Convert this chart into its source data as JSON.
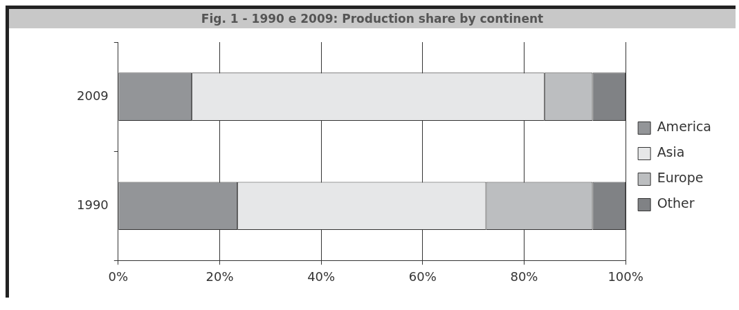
{
  "chart_data": {
    "type": "bar",
    "title": "Fig. 1 - 1990 e 2009: Production share by continent",
    "orientation": "horizontal",
    "stacked": true,
    "categories": [
      "2009",
      "1990"
    ],
    "series": [
      {
        "name": "America",
        "color": "#939598",
        "values": [
          14.5,
          23.5
        ]
      },
      {
        "name": "Asia",
        "color": "#e6e7e8",
        "values": [
          69.5,
          49
        ]
      },
      {
        "name": "Europe",
        "color": "#bcbec0",
        "values": [
          9.5,
          21
        ]
      },
      {
        "name": "Other",
        "color": "#808285",
        "values": [
          6.5,
          6.5
        ]
      }
    ],
    "xlim": [
      0,
      100
    ],
    "xticks": [
      {
        "value": 0,
        "label": "0%"
      },
      {
        "value": 20,
        "label": "20%"
      },
      {
        "value": 40,
        "label": "40%"
      },
      {
        "value": 60,
        "label": "60%"
      },
      {
        "value": 80,
        "label": "80%"
      },
      {
        "value": 100,
        "label": "100%"
      }
    ],
    "grid": "x",
    "legend": "right"
  }
}
